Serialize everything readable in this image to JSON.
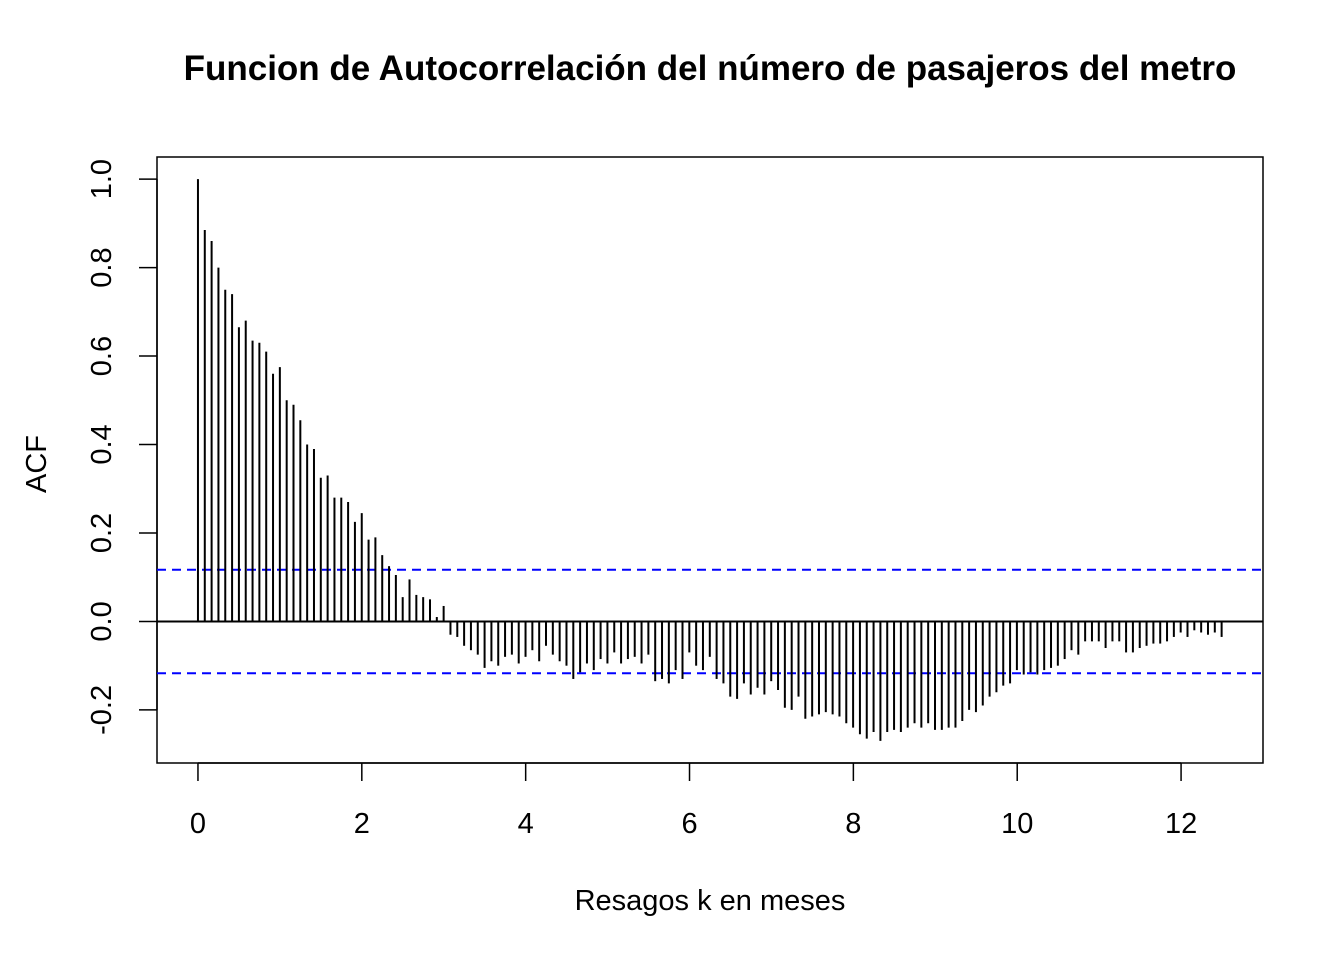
{
  "chart_data": {
    "type": "bar",
    "title": "Funcion de Autocorrelación del número de pasajeros del metro",
    "xlabel": "Resagos k en meses",
    "ylabel": "ACF",
    "xlim": [
      -0.5,
      13.0
    ],
    "ylim": [
      -0.32,
      1.05
    ],
    "x_ticks": [
      0,
      2,
      4,
      6,
      8,
      10,
      12
    ],
    "x_tick_labels": [
      "0",
      "2",
      "4",
      "6",
      "8",
      "10",
      "12"
    ],
    "y_ticks": [
      -0.2,
      0.0,
      0.2,
      0.4,
      0.6,
      0.8,
      1.0
    ],
    "y_tick_labels": [
      "-0.2",
      "0.0",
      "0.2",
      "0.4",
      "0.6",
      "0.8",
      "1.0"
    ],
    "confidence_bound": 0.117,
    "lag_step": 0.0833,
    "acf": [
      1.0,
      0.885,
      0.86,
      0.8,
      0.75,
      0.74,
      0.665,
      0.68,
      0.635,
      0.63,
      0.61,
      0.56,
      0.575,
      0.5,
      0.49,
      0.455,
      0.4,
      0.39,
      0.325,
      0.33,
      0.28,
      0.28,
      0.27,
      0.225,
      0.245,
      0.185,
      0.19,
      0.15,
      0.125,
      0.105,
      0.055,
      0.095,
      0.06,
      0.055,
      0.05,
      0.01,
      0.035,
      -0.03,
      -0.035,
      -0.055,
      -0.065,
      -0.075,
      -0.105,
      -0.09,
      -0.1,
      -0.08,
      -0.075,
      -0.095,
      -0.08,
      -0.065,
      -0.09,
      -0.055,
      -0.075,
      -0.09,
      -0.1,
      -0.13,
      -0.115,
      -0.095,
      -0.11,
      -0.085,
      -0.095,
      -0.07,
      -0.095,
      -0.085,
      -0.08,
      -0.095,
      -0.075,
      -0.135,
      -0.13,
      -0.14,
      -0.11,
      -0.13,
      -0.07,
      -0.1,
      -0.11,
      -0.08,
      -0.13,
      -0.14,
      -0.17,
      -0.175,
      -0.14,
      -0.165,
      -0.15,
      -0.165,
      -0.135,
      -0.155,
      -0.195,
      -0.2,
      -0.17,
      -0.22,
      -0.215,
      -0.21,
      -0.205,
      -0.21,
      -0.215,
      -0.23,
      -0.24,
      -0.255,
      -0.265,
      -0.25,
      -0.27,
      -0.25,
      -0.245,
      -0.25,
      -0.24,
      -0.23,
      -0.24,
      -0.23,
      -0.245,
      -0.245,
      -0.24,
      -0.24,
      -0.225,
      -0.2,
      -0.205,
      -0.19,
      -0.17,
      -0.16,
      -0.145,
      -0.14,
      -0.11,
      -0.12,
      -0.115,
      -0.12,
      -0.11,
      -0.105,
      -0.1,
      -0.085,
      -0.065,
      -0.075,
      -0.045,
      -0.045,
      -0.045,
      -0.06,
      -0.045,
      -0.045,
      -0.07,
      -0.07,
      -0.06,
      -0.055,
      -0.05,
      -0.05,
      -0.045,
      -0.035,
      -0.025,
      -0.035,
      -0.02,
      -0.025,
      -0.03,
      -0.025,
      -0.035
    ],
    "colors": {
      "bars": "#000000",
      "confidence_lines": "#0000ff",
      "zero_line": "#000000",
      "frame": "#000000"
    },
    "grid": false,
    "legend": "none"
  }
}
